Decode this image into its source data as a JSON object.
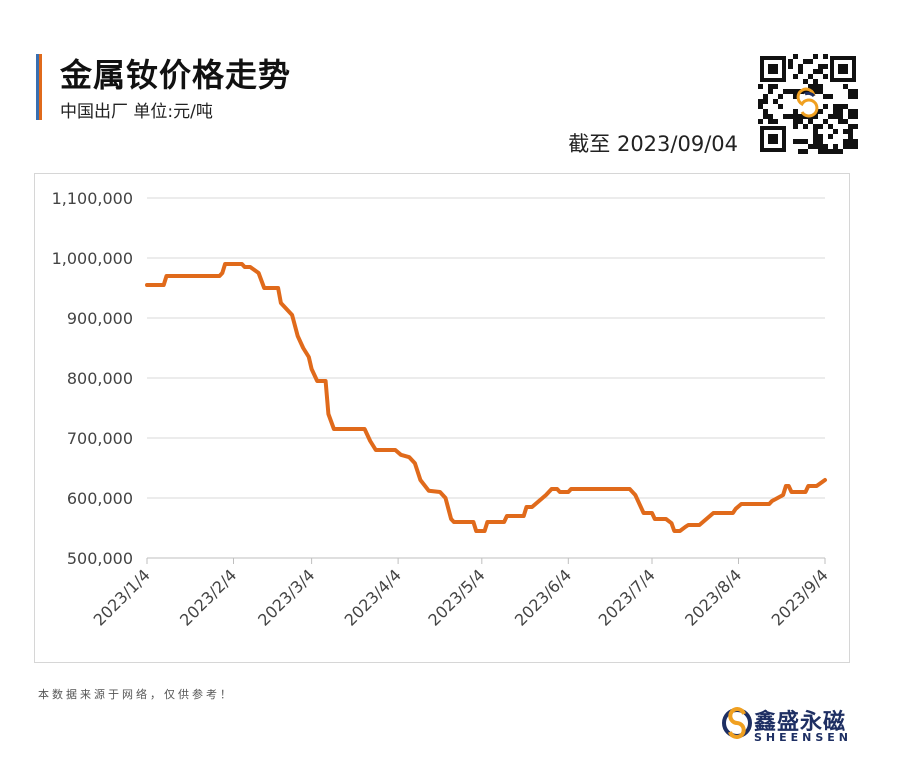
{
  "header": {
    "title": "金属钕价格走势",
    "subtitle": "中国出厂  单位:元/吨",
    "as_of": "截至 2023/09/04"
  },
  "footer": {
    "disclaimer": "本数据来源于网络，仅供参考！",
    "brand_name": "鑫盛永磁",
    "brand_sub": "SHEENSEN"
  },
  "colors": {
    "line": "#e06a1b",
    "brand_blue": "#1e2f63",
    "brand_orange": "#f0a020",
    "grid": "#d9d9d9"
  },
  "icons": {
    "qr": "qr-code-icon",
    "logo": "sheensen-logo-icon"
  },
  "chart_data": {
    "type": "line",
    "title": "金属钕价格走势",
    "ylabel": "元/吨",
    "ylim": [
      500000,
      1100000
    ],
    "yticks": [
      500000,
      600000,
      700000,
      800000,
      900000,
      1000000,
      1100000
    ],
    "ytick_labels": [
      "500,000",
      "600,000",
      "700,000",
      "800,000",
      "900,000",
      "1,000,000",
      "1,100,000"
    ],
    "xlim": [
      "2023-01-04",
      "2023-09-04"
    ],
    "xticks": [
      "2023-01-04",
      "2023-02-04",
      "2023-03-04",
      "2023-04-04",
      "2023-05-04",
      "2023-06-04",
      "2023-07-04",
      "2023-08-04",
      "2023-09-04"
    ],
    "xtick_labels": [
      "2023/1/4",
      "2023/2/4",
      "2023/3/4",
      "2023/4/4",
      "2023/5/4",
      "2023/6/4",
      "2023/7/4",
      "2023/8/4",
      "2023/9/4"
    ],
    "grid": true,
    "legend": "none",
    "series": [
      {
        "points": [
          [
            "2023-01-04",
            955000
          ],
          [
            "2023-01-10",
            955000
          ],
          [
            "2023-01-11",
            970000
          ],
          [
            "2023-01-30",
            970000
          ],
          [
            "2023-01-31",
            975000
          ],
          [
            "2023-02-01",
            990000
          ],
          [
            "2023-02-07",
            990000
          ],
          [
            "2023-02-08",
            985000
          ],
          [
            "2023-02-10",
            985000
          ],
          [
            "2023-02-13",
            975000
          ],
          [
            "2023-02-15",
            950000
          ],
          [
            "2023-02-20",
            950000
          ],
          [
            "2023-02-21",
            925000
          ],
          [
            "2023-02-22",
            920000
          ],
          [
            "2023-02-23",
            915000
          ],
          [
            "2023-02-25",
            905000
          ],
          [
            "2023-02-27",
            870000
          ],
          [
            "2023-03-01",
            850000
          ],
          [
            "2023-03-03",
            835000
          ],
          [
            "2023-03-04",
            815000
          ],
          [
            "2023-03-06",
            795000
          ],
          [
            "2023-03-09",
            795000
          ],
          [
            "2023-03-10",
            740000
          ],
          [
            "2023-03-12",
            715000
          ],
          [
            "2023-03-23",
            715000
          ],
          [
            "2023-03-25",
            695000
          ],
          [
            "2023-03-27",
            680000
          ],
          [
            "2023-04-03",
            680000
          ],
          [
            "2023-04-05",
            672000
          ],
          [
            "2023-04-08",
            668000
          ],
          [
            "2023-04-10",
            658000
          ],
          [
            "2023-04-12",
            630000
          ],
          [
            "2023-04-15",
            612000
          ],
          [
            "2023-04-19",
            610000
          ],
          [
            "2023-04-21",
            600000
          ],
          [
            "2023-04-23",
            565000
          ],
          [
            "2023-04-24",
            560000
          ],
          [
            "2023-05-01",
            560000
          ],
          [
            "2023-05-02",
            545000
          ],
          [
            "2023-05-05",
            545000
          ],
          [
            "2023-05-06",
            560000
          ],
          [
            "2023-05-12",
            560000
          ],
          [
            "2023-05-13",
            570000
          ],
          [
            "2023-05-19",
            570000
          ],
          [
            "2023-05-20",
            585000
          ],
          [
            "2023-05-22",
            585000
          ],
          [
            "2023-05-27",
            605000
          ],
          [
            "2023-05-29",
            615000
          ],
          [
            "2023-05-31",
            615000
          ],
          [
            "2023-06-01",
            610000
          ],
          [
            "2023-06-04",
            610000
          ],
          [
            "2023-06-05",
            615000
          ],
          [
            "2023-06-22",
            615000
          ],
          [
            "2023-06-26",
            615000
          ],
          [
            "2023-06-28",
            605000
          ],
          [
            "2023-07-01",
            575000
          ],
          [
            "2023-07-04",
            575000
          ],
          [
            "2023-07-05",
            565000
          ],
          [
            "2023-07-09",
            565000
          ],
          [
            "2023-07-11",
            558000
          ],
          [
            "2023-07-12",
            545000
          ],
          [
            "2023-07-14",
            545000
          ],
          [
            "2023-07-16",
            552000
          ],
          [
            "2023-07-17",
            555000
          ],
          [
            "2023-07-21",
            555000
          ],
          [
            "2023-07-26",
            575000
          ],
          [
            "2023-08-02",
            575000
          ],
          [
            "2023-08-03",
            582000
          ],
          [
            "2023-08-05",
            590000
          ],
          [
            "2023-08-15",
            590000
          ],
          [
            "2023-08-16",
            595000
          ],
          [
            "2023-08-18",
            600000
          ],
          [
            "2023-08-20",
            605000
          ],
          [
            "2023-08-21",
            620000
          ],
          [
            "2023-08-22",
            620000
          ],
          [
            "2023-08-23",
            610000
          ],
          [
            "2023-08-28",
            610000
          ],
          [
            "2023-08-29",
            620000
          ],
          [
            "2023-09-01",
            620000
          ],
          [
            "2023-09-04",
            630000
          ]
        ]
      }
    ]
  }
}
